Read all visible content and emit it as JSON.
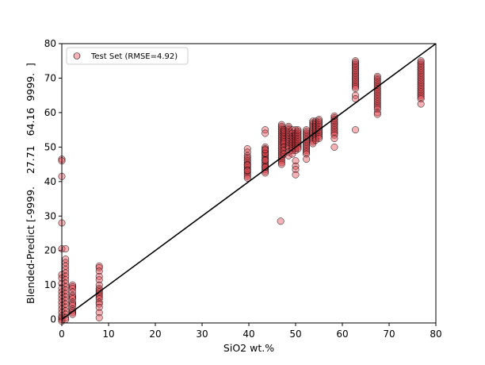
{
  "chart_data": {
    "type": "scatter",
    "title": "",
    "xlabel": "SiO2 wt.%",
    "ylabel": "Blended-Predict [-9999.    27.71   64.16  9999.  ]",
    "xlim": [
      0,
      80
    ],
    "ylim": [
      -1,
      80
    ],
    "xticks": [
      0,
      10,
      20,
      30,
      40,
      50,
      60,
      70,
      80
    ],
    "yticks": [
      0,
      10,
      20,
      30,
      40,
      50,
      60,
      70,
      80
    ],
    "grid": false,
    "legend_position": "top-left",
    "reference_line": {
      "x": [
        0,
        80
      ],
      "y": [
        0,
        80
      ],
      "color": "#000000"
    },
    "marker_color": "#e8424b",
    "marker_edge_color": "#000000",
    "series": [
      {
        "name": "Test Set (RMSE=4.92)",
        "x": [
          0,
          0,
          0,
          0,
          0,
          0,
          0,
          0,
          0,
          0,
          0,
          0,
          0,
          0,
          0,
          0,
          0,
          0,
          0,
          0,
          0.8,
          0.8,
          0.8,
          0.8,
          0.8,
          0.8,
          0.8,
          0.8,
          0.8,
          0.8,
          0.8,
          0.8,
          0.8,
          0.8,
          0.8,
          0.8,
          0.8,
          0.8,
          0.8,
          0.8,
          2.3,
          2.3,
          2.3,
          2.3,
          2.3,
          2.3,
          2.3,
          2.3,
          2.3,
          2.3,
          2.3,
          2.3,
          2.3,
          2.3,
          8,
          8,
          8,
          8,
          8,
          8,
          8,
          8,
          8,
          8,
          8,
          8,
          8,
          8,
          8,
          8,
          8,
          8,
          39.7,
          39.7,
          39.7,
          39.7,
          39.7,
          39.7,
          39.7,
          39.7,
          39.7,
          39.7,
          39.7,
          39.7,
          39.7,
          39.7,
          39.7,
          39.7,
          39.7,
          39.7,
          43.5,
          43.5,
          43.5,
          43.5,
          43.5,
          43.5,
          43.5,
          43.5,
          43.5,
          43.5,
          43.5,
          43.5,
          43.5,
          43.5,
          43.5,
          43.5,
          43.5,
          43.5,
          43.5,
          43.5,
          43.5,
          43.5,
          46.8,
          47,
          47,
          47,
          47,
          47,
          47,
          47,
          47,
          47,
          47,
          47,
          47,
          47,
          47,
          47,
          47,
          47,
          47,
          47,
          47,
          47,
          47,
          47,
          47,
          47.5,
          47.5,
          47.5,
          47.5,
          47.5,
          47.5,
          47.5,
          47.5,
          47.5,
          47.5,
          47.5,
          47.5,
          48.5,
          48.5,
          48.5,
          48.5,
          48.5,
          48.5,
          48.5,
          48.5,
          48.5,
          48.5,
          48.5,
          48.5,
          48.5,
          48.5,
          48.5,
          48.5,
          49.3,
          49.3,
          49.3,
          49.3,
          49.3,
          49.3,
          49.3,
          49.3,
          49.3,
          49.3,
          49.3,
          49.3,
          50,
          50,
          50,
          50,
          50,
          50,
          50,
          50,
          50,
          50,
          50,
          50,
          50,
          50,
          50,
          50,
          50.5,
          50.5,
          50.5,
          50.5,
          50.5,
          50.5,
          50.5,
          50.5,
          50.5,
          50.5,
          50.5,
          50.5,
          52.3,
          52.3,
          52.3,
          52.3,
          52.3,
          52.3,
          52.3,
          52.3,
          52.3,
          52.3,
          52.3,
          52.3,
          52.3,
          52.3,
          52.3,
          52.3,
          53.7,
          53.7,
          53.7,
          53.7,
          53.7,
          53.7,
          53.7,
          53.7,
          53.7,
          53.7,
          53.7,
          53.7,
          53.7,
          53.7,
          54.3,
          54.3,
          54.3,
          54.3,
          54.3,
          54.3,
          54.3,
          54.3,
          54.3,
          54.3,
          54.3,
          54.3,
          55,
          55,
          55,
          55,
          55,
          55,
          55,
          55,
          55,
          55,
          55,
          55,
          58.3,
          58.3,
          58.3,
          58.3,
          58.3,
          58.3,
          58.3,
          58.3,
          58.3,
          58.3,
          58.3,
          58.3,
          58.3,
          58.3,
          62.8,
          62.8,
          62.8,
          62.8,
          62.8,
          62.8,
          62.8,
          62.8,
          62.8,
          62.8,
          62.8,
          62.8,
          62.8,
          62.8,
          62.8,
          62.8,
          62.8,
          62.8,
          62.8,
          62.8,
          67.5,
          67.5,
          67.5,
          67.5,
          67.5,
          67.5,
          67.5,
          67.5,
          67.5,
          67.5,
          67.5,
          67.5,
          67.5,
          67.5,
          67.5,
          67.5,
          67.5,
          67.5,
          67.5,
          67.5,
          67.5,
          67.5,
          76.8,
          76.8,
          76.8,
          76.8,
          76.8,
          76.8,
          76.8,
          76.8,
          76.8,
          76.8,
          76.8,
          76.8,
          76.8,
          76.8,
          76.8,
          76.8,
          76.8,
          76.8,
          76.8,
          76.8,
          76.8,
          76.8,
          76.8,
          76.8
        ],
        "y": [
          46.5,
          46,
          41.5,
          28,
          20.5,
          13,
          12,
          10.5,
          9,
          8,
          7,
          6,
          5,
          4,
          3,
          2,
          1,
          0.5,
          0,
          -0.5,
          20.5,
          17.5,
          16.5,
          15.5,
          14.5,
          13.5,
          12.5,
          11.5,
          10.5,
          9.5,
          8.5,
          7.5,
          6.5,
          5.5,
          4.5,
          3.5,
          2.5,
          1.5,
          0.5,
          0,
          10,
          9.5,
          9,
          8,
          7,
          6.5,
          6,
          5,
          4.5,
          4,
          3,
          2.5,
          2,
          1.5,
          15.5,
          15,
          14,
          12.5,
          11.5,
          10,
          9,
          8.5,
          8,
          7.5,
          7,
          6.5,
          6,
          5,
          4.5,
          3.5,
          2,
          0.5,
          49.5,
          48.5,
          47.5,
          47,
          46.5,
          46,
          45.5,
          45,
          44.5,
          44,
          43.5,
          43,
          42.5,
          42,
          41.5,
          41,
          44.8,
          43.2,
          55,
          54,
          50,
          49.5,
          49,
          48.5,
          48,
          47.5,
          47,
          46.5,
          46,
          45.5,
          45,
          44.5,
          44,
          43.5,
          43,
          42.5,
          46.2,
          48.2,
          44.2,
          49.2,
          28.5,
          56.5,
          56,
          55.5,
          55,
          54.5,
          54,
          53.5,
          53,
          52.5,
          52,
          51.5,
          51,
          50.5,
          50,
          49.5,
          49,
          48.5,
          48,
          47.5,
          47,
          46.5,
          46,
          45.5,
          45,
          55,
          54.5,
          54,
          53.5,
          53,
          52.5,
          52,
          51.5,
          51,
          50,
          49,
          48,
          56,
          55.5,
          55,
          54.5,
          54,
          53.5,
          53,
          52.5,
          52,
          51.5,
          51,
          50.5,
          50,
          49.5,
          48.5,
          47.5,
          55,
          54,
          53,
          52.5,
          52,
          51.5,
          51,
          50.5,
          50,
          49.5,
          49,
          48,
          55,
          54,
          53.5,
          53,
          52.5,
          52,
          51.5,
          51,
          50.5,
          50,
          49.5,
          49,
          46,
          44.5,
          43.5,
          42,
          55,
          54.5,
          54,
          53.5,
          53,
          52.5,
          52,
          51.5,
          51,
          50.5,
          50,
          49.5,
          55,
          54.5,
          54,
          53.5,
          53,
          52.5,
          52,
          51.5,
          51,
          50.5,
          50,
          49.5,
          49,
          48.5,
          48,
          46.5,
          57.5,
          57,
          56.5,
          56,
          55.5,
          55,
          54.5,
          54,
          53.5,
          53,
          52.5,
          52,
          51.5,
          51,
          57.5,
          57,
          56.5,
          56,
          55.5,
          55,
          54.5,
          54,
          53.5,
          53,
          52.5,
          52,
          58,
          57.5,
          57,
          56.5,
          56,
          55.5,
          55,
          54.5,
          54,
          53.5,
          53,
          52.5,
          59,
          58.5,
          58,
          57.5,
          57,
          56.5,
          56,
          55.5,
          55,
          54.5,
          54,
          53.5,
          52.5,
          50,
          75,
          74.5,
          74,
          73.5,
          73,
          72.5,
          72,
          71.5,
          71,
          70.5,
          70,
          69.5,
          69,
          68.5,
          68,
          67.5,
          67,
          65,
          64,
          55,
          70.5,
          70,
          69.5,
          69,
          68.5,
          68,
          67.5,
          67,
          66.5,
          66,
          65.5,
          65,
          64.5,
          64,
          63.5,
          63,
          62.5,
          62,
          61.5,
          61,
          60,
          59.5,
          75,
          74.5,
          74,
          73.5,
          73,
          72.5,
          72,
          71.5,
          71,
          70.5,
          70,
          69.5,
          69,
          68.5,
          68,
          67.5,
          67,
          66.5,
          66,
          65.5,
          65,
          64.5,
          64,
          62.5
        ]
      }
    ]
  }
}
